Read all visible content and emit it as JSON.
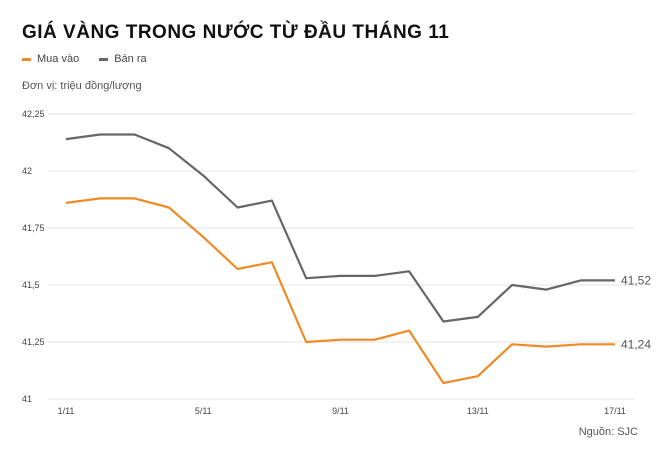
{
  "title": "GIÁ VÀNG TRONG NƯỚC TỪ ĐẦU THÁNG 11",
  "unit_label": "Đơn vị: triệu đồng/lượng",
  "source": "Nguồn: SJC",
  "chart_data": {
    "type": "line",
    "x": [
      "1/11",
      "2/11",
      "3/11",
      "4/11",
      "5/11",
      "6/11",
      "7/11",
      "8/11",
      "9/11",
      "10/11",
      "11/11",
      "12/11",
      "13/11",
      "14/11",
      "15/11",
      "16/11",
      "17/11"
    ],
    "x_tick_labels": [
      "1/11",
      "5/11",
      "9/11",
      "13/11",
      "17/11"
    ],
    "y_tick_labels": [
      "42,25",
      "42",
      "41,75",
      "41,5",
      "41,25",
      "41"
    ],
    "y_ticks": [
      42.25,
      42,
      41.75,
      41.5,
      41.25,
      41
    ],
    "ylim": [
      41,
      42.25
    ],
    "grid": true,
    "legend_position": "top-left",
    "series": [
      {
        "name": "Mua vào",
        "color": "#f08a24",
        "values": [
          41.86,
          41.88,
          41.88,
          41.84,
          41.71,
          41.57,
          41.6,
          41.25,
          41.26,
          41.26,
          41.3,
          41.07,
          41.1,
          41.24,
          41.23,
          41.24,
          41.24
        ],
        "end_label": "41,24"
      },
      {
        "name": "Bán ra",
        "color": "#666666",
        "values": [
          42.14,
          42.16,
          42.16,
          42.1,
          41.98,
          41.84,
          41.87,
          41.53,
          41.54,
          41.54,
          41.56,
          41.34,
          41.36,
          41.5,
          41.48,
          41.52,
          41.52
        ],
        "end_label": "41,52"
      }
    ]
  }
}
